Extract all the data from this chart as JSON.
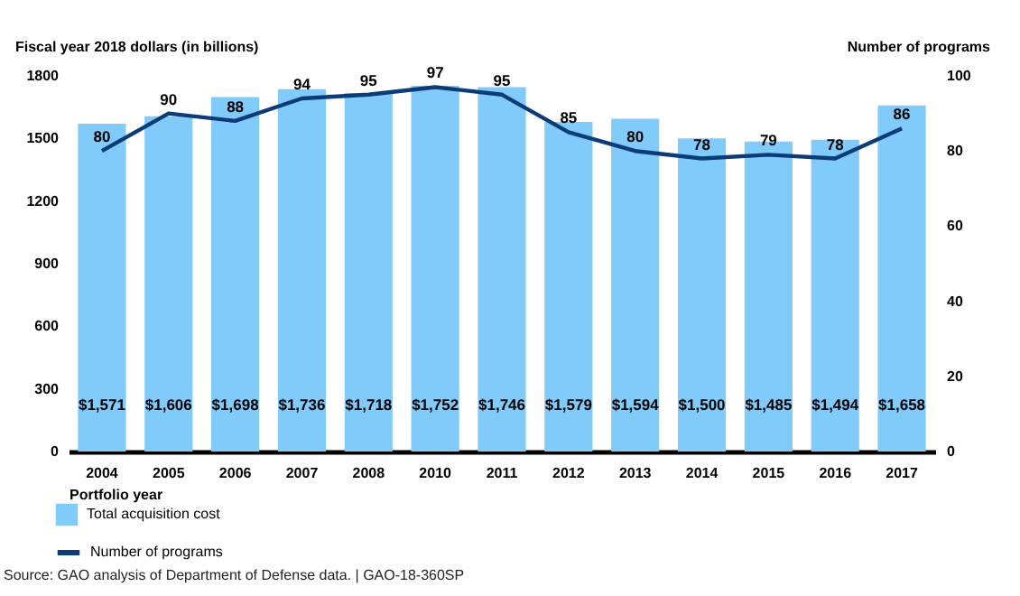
{
  "chart_data": {
    "type": "bar",
    "ylabel": "Fiscal year 2018 dollars (in billions)",
    "y2label": "Number of programs",
    "xlabel": "Portfolio year",
    "annotations": [
      "Source: GAO analysis of Department of Defense data.  |  GAO-18-360SP"
    ],
    "categories": [
      "2004",
      "2005",
      "2006",
      "2007",
      "2008",
      "2010",
      "2011",
      "2012",
      "2013",
      "2014",
      "2015",
      "2016",
      "2017"
    ],
    "series": [
      {
        "name": "Total acquisition cost",
        "color": "#80cbfa",
        "values": [
          1571,
          1606,
          1698,
          1736,
          1718,
          1752,
          1746,
          1579,
          1594,
          1500,
          1485,
          1494,
          1658
        ],
        "value_labels": [
          "$1,571",
          "$1,606",
          "$1,698",
          "$1,736",
          "$1,718",
          "$1,752",
          "$1,746",
          "$1,579",
          "$1,594",
          "$1,500",
          "$1,485",
          "$1,494",
          "$1,658"
        ]
      },
      {
        "name": "Number of programs",
        "type": "line",
        "axis": "y2",
        "color": "#0b3c78",
        "values": [
          80,
          90,
          88,
          94,
          95,
          97,
          95,
          85,
          80,
          78,
          79,
          78,
          86
        ],
        "data_labels": true
      }
    ],
    "ylim": [
      0,
      1800
    ],
    "yticks": [
      0,
      300,
      600,
      900,
      1200,
      1500,
      1800
    ],
    "y2lim": [
      0,
      100
    ],
    "y2ticks": [
      0,
      20,
      40,
      60,
      80,
      100
    ],
    "grid": false,
    "legend": "bottom",
    "marker": "none",
    "line_style": "solid"
  }
}
